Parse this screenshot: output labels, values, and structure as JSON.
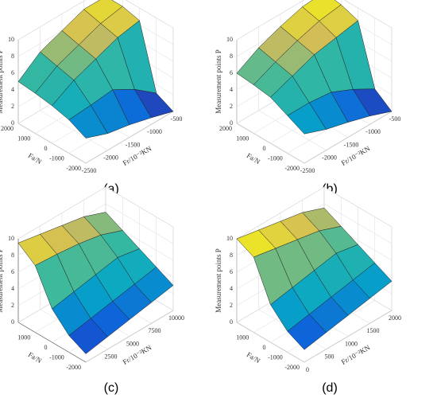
{
  "chart_data": [
    {
      "type": "surface",
      "label": "(a)",
      "zlabel": "Measurement points P",
      "xlabel": "Fr/10⁻²KN",
      "ylabel": "Fa/N",
      "x": [
        -2500,
        -2000,
        -1500,
        -1000,
        -500
      ],
      "y": [
        -2000,
        -1000,
        0,
        1000,
        2000
      ],
      "z": [
        [
          3,
          2,
          1.5,
          0.8,
          0
        ],
        [
          4,
          4.2,
          4.5,
          3,
          1
        ],
        [
          4.5,
          6,
          7,
          8,
          8.5
        ],
        [
          4.8,
          6.5,
          7.5,
          8.5,
          9
        ],
        [
          5,
          7,
          8,
          9,
          9
        ]
      ],
      "xlim": [
        -2500,
        -500
      ],
      "ylim": [
        -2000,
        2000
      ],
      "zlim": [
        0,
        10
      ],
      "xticks": [
        -2500,
        -2000,
        -1500,
        -1000,
        -500
      ],
      "yticks": [
        -2000,
        -1000,
        0,
        1000,
        2000
      ],
      "zticks": [
        0,
        2,
        4,
        6,
        8,
        10
      ],
      "colormap": [
        "#352a87",
        "#0f5cdd",
        "#06a7c6",
        "#38b99e",
        "#d1bb59",
        "#f9fb0e"
      ]
    },
    {
      "type": "surface",
      "label": "(b)",
      "zlabel": "Measurement points P",
      "xlabel": "Fr/10⁻²KN",
      "ylabel": "Fa/N",
      "x": [
        -2500,
        -2000,
        -1500,
        -1000,
        -500
      ],
      "y": [
        -2000,
        -1000,
        0,
        1000,
        2000
      ],
      "z": [
        [
          3.5,
          2.5,
          1.8,
          1,
          0
        ],
        [
          4.5,
          4.5,
          4.2,
          3,
          1.5
        ],
        [
          5.5,
          6.5,
          7.5,
          8,
          8.5
        ],
        [
          5.8,
          7,
          8,
          8.8,
          9.2
        ],
        [
          6,
          7.5,
          8.5,
          9.3,
          9.5
        ]
      ],
      "xlim": [
        -2500,
        -500
      ],
      "ylim": [
        -2000,
        2000
      ],
      "zlim": [
        0,
        10
      ],
      "xticks": [
        -2500,
        -2000,
        -1500,
        -1000,
        -500
      ],
      "yticks": [
        -2000,
        -1000,
        0,
        1000,
        2000
      ],
      "zticks": [
        0,
        2,
        4,
        6,
        8,
        10
      ],
      "colormap": [
        "#352a87",
        "#0f5cdd",
        "#06a7c6",
        "#38b99e",
        "#d1bb59",
        "#f9fb0e"
      ]
    },
    {
      "type": "surface",
      "label": "(c)",
      "zlabel": "Measurement points P",
      "xlabel": "Fr/10⁻²KN",
      "ylabel": "Fa/N",
      "x": [
        0,
        2500,
        5000,
        7500,
        10000
      ],
      "y": [
        -2000,
        -1000,
        0,
        1000,
        2000
      ],
      "z": [
        [
          1,
          1.5,
          2,
          2.5,
          3
        ],
        [
          2,
          2.5,
          3,
          3.5,
          4
        ],
        [
          4,
          4.5,
          5,
          5.5,
          5
        ],
        [
          8,
          7.8,
          7.5,
          7,
          6
        ],
        [
          9.5,
          9,
          8.5,
          8,
          7
        ]
      ],
      "xlim": [
        0,
        10000
      ],
      "ylim": [
        -2000,
        2000
      ],
      "zlim": [
        0,
        10
      ],
      "xticks": [
        2500,
        5000,
        7500,
        10000
      ],
      "yticks": [
        -2000,
        -1000,
        0,
        1000
      ],
      "zticks": [
        0,
        2,
        4,
        6,
        8,
        10
      ],
      "colormap": [
        "#352a87",
        "#0f5cdd",
        "#06a7c6",
        "#38b99e",
        "#d1bb59",
        "#f9fb0e"
      ]
    },
    {
      "type": "surface",
      "label": "(d)",
      "zlabel": "Measurement points P",
      "xlabel": "Fr/10⁻²KN",
      "ylabel": "Fa/N",
      "x": [
        0,
        500,
        1000,
        1500,
        2000
      ],
      "y": [
        -2000,
        -1000,
        0,
        1000,
        2000
      ],
      "z": [
        [
          1.5,
          2,
          2.5,
          3,
          3.5
        ],
        [
          2.5,
          3,
          3.5,
          4,
          4.5
        ],
        [
          4.5,
          5,
          5.5,
          6,
          5.5
        ],
        [
          9,
          8.5,
          8,
          7.5,
          6.5
        ],
        [
          10,
          9.5,
          9,
          8.5,
          7.5
        ]
      ],
      "xlim": [
        0,
        2000
      ],
      "ylim": [
        -2000,
        2000
      ],
      "zlim": [
        0,
        10
      ],
      "xticks": [
        0,
        500,
        1000,
        1500,
        2000
      ],
      "yticks": [
        -2000,
        -1000,
        0,
        1000
      ],
      "zticks": [
        0,
        2,
        4,
        6,
        8,
        10
      ],
      "colormap": [
        "#352a87",
        "#0f5cdd",
        "#06a7c6",
        "#38b99e",
        "#d1bb59",
        "#f9fb0e"
      ]
    }
  ]
}
